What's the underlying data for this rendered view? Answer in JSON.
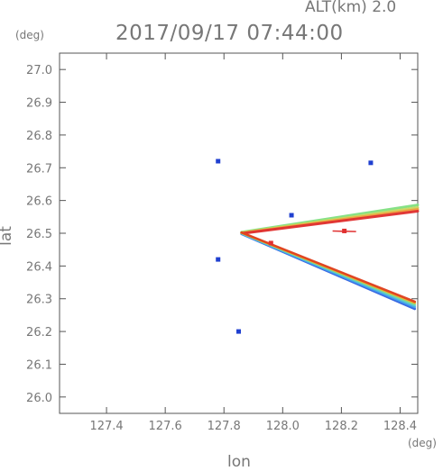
{
  "header": {
    "altitude": "ALT(km)  2.0",
    "datetime": "2017/09/17  07:44:00",
    "lat_unit": "(deg)",
    "lon_unit": "(deg)"
  },
  "chart_data": {
    "type": "scatter",
    "xlabel": "lon",
    "ylabel": "lat",
    "xlim": [
      127.24,
      128.46
    ],
    "ylim": [
      25.95,
      27.05
    ],
    "xticks": [
      "127.4",
      "127.6",
      "127.8",
      "128.0",
      "128.2",
      "128.4"
    ],
    "yticks": [
      "27.0",
      "26.9",
      "26.8",
      "26.7",
      "26.6",
      "26.5",
      "26.4",
      "26.3",
      "26.2",
      "26.1",
      "26.0"
    ],
    "grid": false,
    "colors": {
      "axis": "#555555",
      "text": "#777777",
      "upper_band": [
        "#80e080",
        "#c8d860",
        "#f0a040",
        "#e03030"
      ],
      "lower_band": [
        "#3060e0",
        "#40a0f0",
        "#60d0c0",
        "#a0d860",
        "#f0b030",
        "#e04020"
      ],
      "speckle_blue": "#2040d0",
      "speckle_red": "#e03030"
    },
    "echo_bands": [
      {
        "name": "",
        "x": [
          127.86,
          128.46
        ],
        "y": [
          26.5,
          26.57
        ]
      },
      {
        "name": "",
        "x": [
          127.86,
          128.45
        ],
        "y": [
          26.5,
          26.28
        ]
      }
    ],
    "speckles": [
      {
        "x": 128.3,
        "y": 26.715,
        "color": "blue"
      },
      {
        "x": 127.78,
        "y": 26.42,
        "color": "blue"
      },
      {
        "x": 127.85,
        "y": 26.2,
        "color": "blue"
      },
      {
        "x": 127.78,
        "y": 26.72,
        "color": "blue"
      },
      {
        "x": 128.03,
        "y": 26.555,
        "color": "blue"
      },
      {
        "x": 127.96,
        "y": 26.47,
        "color": "red"
      },
      {
        "x": 128.21,
        "y": 26.507,
        "color": "red"
      }
    ]
  }
}
